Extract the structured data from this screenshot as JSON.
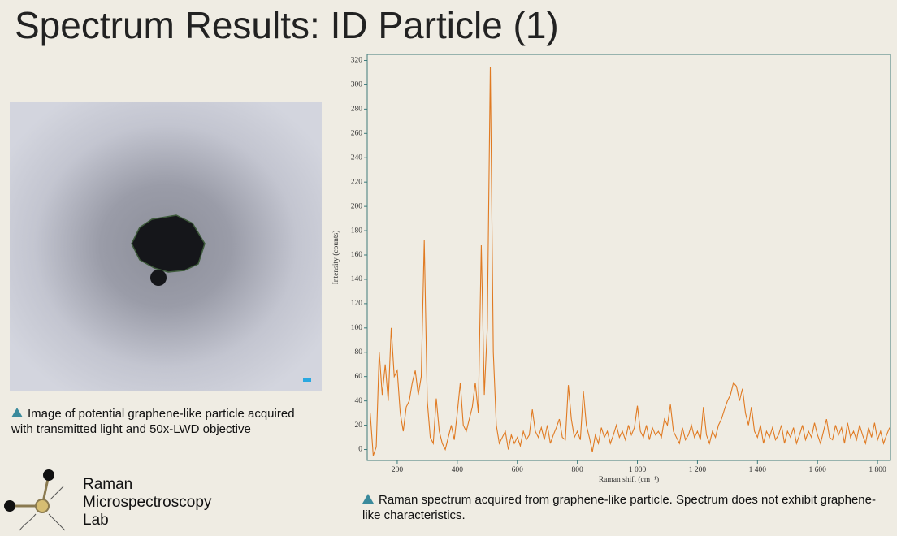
{
  "title": "Spectrum Results: ID Particle (1)",
  "image_caption": "Image of potential graphene-like particle acquired with transmitted light and 50x-LWD objective",
  "chart_caption": "Raman spectrum acquired from graphene-like particle. Spectrum does not exhibit graphene-like characteristics.",
  "logo": [
    "Raman",
    "Microspectroscopy",
    "Lab"
  ],
  "chart_data": {
    "type": "line",
    "x_label": "Raman shift (cm⁻¹)",
    "y_label": "Intensity (counts)",
    "color": "#e07a22",
    "grid": false,
    "xlim": [
      100,
      1843
    ],
    "ylim": [
      -9,
      325
    ],
    "xticks": [
      200,
      400,
      600,
      800,
      {
        "value": 1000,
        "label": "1 000"
      },
      {
        "value": 1200,
        "label": "1 200"
      },
      {
        "value": 1400,
        "label": "1 400"
      },
      {
        "value": 1600,
        "label": "1 600"
      },
      {
        "value": 1800,
        "label": "1 800"
      }
    ],
    "yticks": [
      0,
      20,
      40,
      60,
      80,
      100,
      120,
      140,
      160,
      180,
      200,
      220,
      240,
      260,
      280,
      300,
      320
    ],
    "x": [
      110,
      120,
      130,
      140,
      150,
      160,
      170,
      180,
      190,
      200,
      210,
      220,
      230,
      240,
      250,
      260,
      270,
      280,
      290,
      300,
      310,
      320,
      330,
      340,
      350,
      360,
      370,
      380,
      390,
      400,
      410,
      420,
      430,
      440,
      450,
      460,
      470,
      480,
      490,
      500,
      510,
      520,
      530,
      540,
      550,
      560,
      570,
      580,
      590,
      600,
      610,
      620,
      630,
      640,
      650,
      660,
      670,
      680,
      690,
      700,
      710,
      720,
      730,
      740,
      750,
      760,
      770,
      780,
      790,
      800,
      810,
      820,
      830,
      840,
      850,
      860,
      870,
      880,
      890,
      900,
      910,
      920,
      930,
      940,
      950,
      960,
      970,
      980,
      990,
      1000,
      1010,
      1020,
      1030,
      1040,
      1050,
      1060,
      1070,
      1080,
      1090,
      1100,
      1110,
      1120,
      1130,
      1140,
      1150,
      1160,
      1170,
      1180,
      1190,
      1200,
      1210,
      1220,
      1230,
      1240,
      1250,
      1260,
      1270,
      1280,
      1290,
      1300,
      1310,
      1320,
      1330,
      1340,
      1350,
      1360,
      1370,
      1380,
      1390,
      1400,
      1410,
      1420,
      1430,
      1440,
      1450,
      1460,
      1470,
      1480,
      1490,
      1500,
      1510,
      1520,
      1530,
      1540,
      1550,
      1560,
      1570,
      1580,
      1590,
      1600,
      1610,
      1620,
      1630,
      1640,
      1650,
      1660,
      1670,
      1680,
      1690,
      1700,
      1710,
      1720,
      1730,
      1740,
      1750,
      1760,
      1770,
      1780,
      1790,
      1800,
      1810,
      1820,
      1830,
      1840
    ],
    "values": [
      30,
      -5,
      2,
      80,
      45,
      70,
      40,
      100,
      60,
      65,
      30,
      15,
      35,
      40,
      55,
      65,
      45,
      60,
      172,
      40,
      10,
      5,
      42,
      15,
      5,
      0,
      10,
      20,
      8,
      30,
      55,
      20,
      15,
      25,
      35,
      55,
      30,
      168,
      45,
      100,
      315,
      80,
      20,
      5,
      10,
      15,
      0,
      12,
      5,
      10,
      3,
      15,
      8,
      12,
      33,
      15,
      10,
      18,
      8,
      20,
      5,
      12,
      18,
      25,
      10,
      8,
      53,
      25,
      10,
      15,
      8,
      48,
      20,
      10,
      -2,
      12,
      5,
      18,
      10,
      15,
      5,
      12,
      20,
      10,
      15,
      8,
      20,
      12,
      18,
      36,
      15,
      10,
      20,
      8,
      18,
      12,
      15,
      10,
      25,
      20,
      37,
      15,
      10,
      5,
      18,
      8,
      12,
      20,
      10,
      15,
      8,
      35,
      12,
      5,
      15,
      10,
      20,
      25,
      33,
      40,
      45,
      55,
      52,
      40,
      50,
      30,
      20,
      35,
      15,
      10,
      20,
      5,
      15,
      10,
      18,
      8,
      12,
      20,
      5,
      15,
      10,
      18,
      5,
      12,
      20,
      8,
      15,
      10,
      22,
      12,
      5,
      15,
      25,
      10,
      8,
      20,
      12,
      18,
      5,
      22,
      10,
      15,
      8,
      20,
      12,
      5,
      18,
      10,
      22,
      8,
      15,
      5,
      12,
      18
    ]
  }
}
